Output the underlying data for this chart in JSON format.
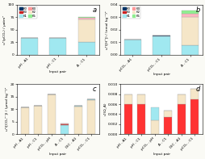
{
  "panel_a": {
    "categories": [
      "pH - A1",
      "pH - C1",
      "A - C1"
    ],
    "stacks": [
      {
        "color": "#A0E8F0",
        "vals": [
          33,
          33,
          26
        ]
      },
      {
        "color": "#003366",
        "vals": [
          1,
          1,
          0
        ]
      },
      {
        "color": "#F5E6C8",
        "vals": [
          0,
          0,
          44
        ]
      },
      {
        "color": "#FFB6C1",
        "vals": [
          0,
          0,
          3
        ]
      },
      {
        "color": "#90EE90",
        "vals": [
          0,
          0,
          2
        ]
      }
    ],
    "ylabel": "u²(pCO₂) / µatm²",
    "ylim": [
      0,
      100
    ],
    "yticks": [
      0,
      25,
      50,
      75,
      100
    ],
    "label": "a"
  },
  "panel_b": {
    "categories": [
      "pCO₂ - A1",
      "pCO₂ - C1",
      "A - C1"
    ],
    "stacks": [
      {
        "color": "#A0E8F0",
        "vals": [
          0.012,
          0.015,
          0.008
        ]
      },
      {
        "color": "#003366",
        "vals": [
          0.0005,
          0.0005,
          0
        ]
      },
      {
        "color": "#F5E6C8",
        "vals": [
          0,
          0,
          0.022
        ]
      },
      {
        "color": "#FFB6C1",
        "vals": [
          0,
          0,
          0.003
        ]
      },
      {
        "color": "#90EE90",
        "vals": [
          0,
          0,
          0.002
        ]
      }
    ],
    "ylabel": "u²([H⁺]) / (nmol kg⁻¹)²",
    "ylim": [
      0,
      0.04
    ],
    "yticks": [
      0.0,
      0.01,
      0.02,
      0.03,
      0.04
    ],
    "label": "b"
  },
  "panel_c": {
    "categories": [
      "pH - A1",
      "pH - C1",
      "pCO₂ - pH",
      "A - C1",
      "DIC - A1",
      "pCO₂ - C1"
    ],
    "stacks": [
      {
        "color": "#F5E6C8",
        "vals": [
          10.8,
          11.5,
          16.0,
          0.0,
          11.0,
          13.5
        ]
      },
      {
        "color": "#A0E8F0",
        "vals": [
          0.0,
          0.0,
          0.0,
          3.5,
          0.5,
          0.5
        ]
      },
      {
        "color": "#20B2AA",
        "vals": [
          0.0,
          0.0,
          0.0,
          0.3,
          0.0,
          0.0
        ]
      },
      {
        "color": "#CC2222",
        "vals": [
          0.0,
          0.0,
          0.0,
          0.3,
          0.0,
          0.0
        ]
      },
      {
        "color": "#FF9999",
        "vals": [
          0.0,
          0.0,
          0.0,
          0.2,
          0.0,
          0.0
        ]
      },
      {
        "color": "#90EE90",
        "vals": [
          0.0,
          0.0,
          0.0,
          0.1,
          0.0,
          0.0
        ]
      }
    ],
    "ylabel": "u²([CO₃²⁻]) / (µmol kg⁻¹)²",
    "ylim": [
      0,
      20
    ],
    "yticks": [
      0,
      5,
      10,
      15,
      20
    ],
    "label": "c"
  },
  "panel_d": {
    "categories": [
      "pH - A1",
      "pH - C1",
      "pCO₂ - pH",
      "A - C1",
      "DIC - A1",
      "pCO₂ - C1"
    ],
    "stacks": [
      {
        "color": "#FF3333",
        "vals": [
          0.006,
          0.006,
          0.0,
          0.0035,
          0.006,
          0.007
        ]
      },
      {
        "color": "#F5E6C8",
        "vals": [
          0.002,
          0.002,
          0.0028,
          0.0012,
          0.002,
          0.002
        ]
      },
      {
        "color": "#A0E8F0",
        "vals": [
          0.0,
          0.0,
          0.0025,
          0.0,
          0.0,
          0.0
        ]
      }
    ],
    "ylabel": "u²(Ω_A)",
    "ylim": [
      0,
      0.01
    ],
    "yticks": [
      0.0,
      0.002,
      0.004,
      0.006,
      0.008,
      0.01
    ],
    "label": "d"
  },
  "legend_items": [
    {
      "color": "#003366",
      "label": "K0"
    },
    {
      "color": "#CC2222",
      "label": "K3"
    },
    {
      "color": "#A0E8F0",
      "label": "K1"
    },
    {
      "color": "#FF9999",
      "label": "K4"
    },
    {
      "color": "#F5E6C8",
      "label": "K2"
    },
    {
      "color": "#90EE90",
      "label": "K5"
    }
  ],
  "bg_color": "#FAFAF5"
}
